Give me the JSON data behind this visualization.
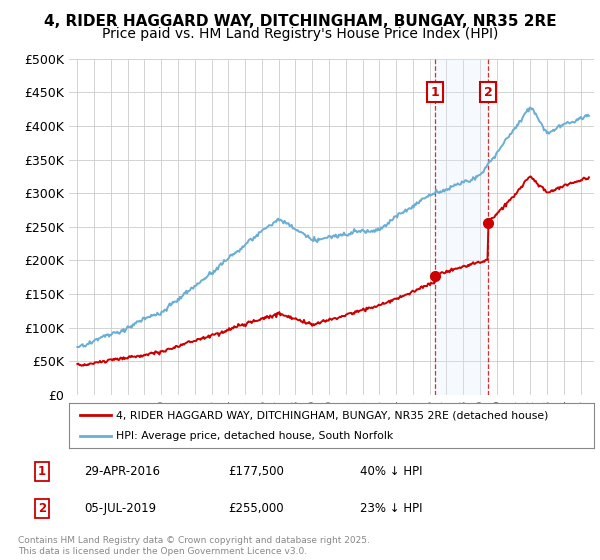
{
  "title": "4, RIDER HAGGARD WAY, DITCHINGHAM, BUNGAY, NR35 2RE",
  "subtitle": "Price paid vs. HM Land Registry's House Price Index (HPI)",
  "ylim": [
    0,
    500000
  ],
  "yticks": [
    0,
    50000,
    100000,
    150000,
    200000,
    250000,
    300000,
    350000,
    400000,
    450000,
    500000
  ],
  "ytick_labels": [
    "£0",
    "£50K",
    "£100K",
    "£150K",
    "£200K",
    "£250K",
    "£300K",
    "£350K",
    "£400K",
    "£450K",
    "£500K"
  ],
  "hpi_color": "#6aaed6",
  "property_color": "#cc0000",
  "vline_color": "#cc0000",
  "span_color": "#ddeeff",
  "background_color": "#ffffff",
  "grid_color": "#cccccc",
  "marker1_x": 2016.33,
  "marker2_x": 2019.5,
  "marker1_y": 177500,
  "marker2_y": 255000,
  "legend_property": "4, RIDER HAGGARD WAY, DITCHINGHAM, BUNGAY, NR35 2RE (detached house)",
  "legend_hpi": "HPI: Average price, detached house, South Norfolk",
  "ann1_num": "1",
  "ann1_date": "29-APR-2016",
  "ann1_price": "£177,500",
  "ann1_pct": "40% ↓ HPI",
  "ann2_num": "2",
  "ann2_date": "05-JUL-2019",
  "ann2_price": "£255,000",
  "ann2_pct": "23% ↓ HPI",
  "copyright": "Contains HM Land Registry data © Crown copyright and database right 2025.\nThis data is licensed under the Open Government Licence v3.0.",
  "xlim_start": 1994.5,
  "xlim_end": 2025.8,
  "title_fontsize": 11,
  "subtitle_fontsize": 10
}
